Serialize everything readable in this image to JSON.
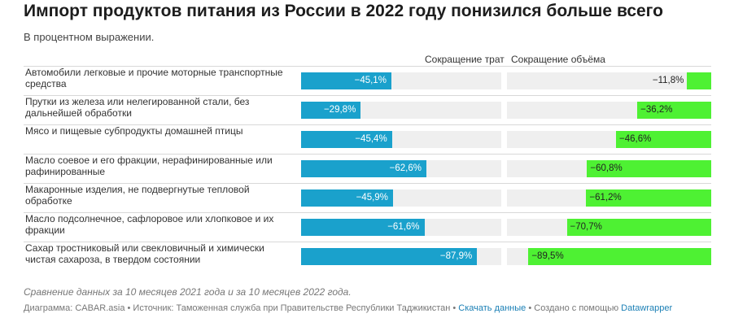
{
  "header": {
    "title": "Импорт продуктов питания из России в 2022 году понизился больше всего",
    "subtitle": "В процентном выражении."
  },
  "chart_data": {
    "type": "bar",
    "columns": [
      "Сокращение трат",
      "Сокращение объёма"
    ],
    "categories": [
      "Автомобили легковые и прочие моторные транспортные средства",
      "Прутки из железа или нелегированной стали, без дальнейшей обработки",
      "Мясо и пищевые субпродукты домашней птицы",
      "Масло соевое и его фракции, нерафинированные или рафинированные",
      "Макаронные изделия, не подвергнутые тепловой обработке",
      "Масло подсолнечное, сафлоровое или хлопковое и их фракции",
      "Сахар тростниковый или свекловичный и химически чистая сахароза, в твердом состоянии"
    ],
    "series": [
      {
        "name": "Сокращение трат",
        "values": [
          -45.1,
          -29.8,
          -45.4,
          -62.6,
          -45.9,
          -61.6,
          -87.9
        ],
        "labels": [
          "−45,1%",
          "−29,8%",
          "−45,4%",
          "−62,6%",
          "−45,9%",
          "−61,6%",
          "−87,9%"
        ],
        "color": "#1aa1cc"
      },
      {
        "name": "Сокращение объёма",
        "values": [
          -11.8,
          -36.2,
          -46.6,
          -60.8,
          -61.2,
          -70.7,
          -89.5
        ],
        "labels": [
          "−11,8%",
          "−36,2%",
          "−46,6%",
          "−60,8%",
          "−61,2%",
          "−70,7%",
          "−89,5%"
        ],
        "color": "#4ef133"
      }
    ],
    "xlim": [
      -100,
      0
    ],
    "track_color": "#efefef"
  },
  "footer": {
    "note": "Сравнение данных за 10 месяцев 2021 года и за 10 месяцев 2022 года.",
    "credit_prefix": "Диаграмма: CABAR.asia • Источник: Таможенная служба при Правительстве Республики Таджикистан • ",
    "download_link": "Скачать данные",
    "credit_middle": " • Создано с помощью ",
    "tool_link": "Datawrapper"
  }
}
